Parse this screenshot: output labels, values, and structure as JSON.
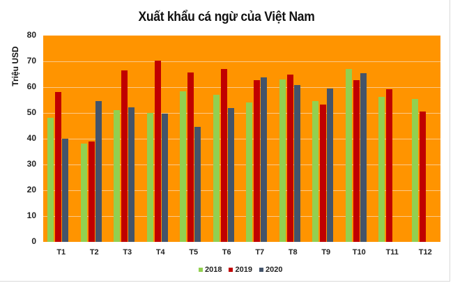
{
  "chart_data": {
    "type": "bar",
    "title": "Xuất khẩu cá ngừ của Việt Nam",
    "xlabel": "",
    "ylabel": "Triệu USD",
    "ylim": [
      0,
      80
    ],
    "yticks": [
      0,
      10,
      20,
      30,
      40,
      50,
      60,
      70,
      80
    ],
    "grid": true,
    "legend_position": "bottom",
    "background_color": "#FF9400",
    "categories": [
      "T1",
      "T2",
      "T3",
      "T4",
      "T5",
      "T6",
      "T7",
      "T8",
      "T9",
      "T10",
      "T11",
      "T12"
    ],
    "series": [
      {
        "name": "2018",
        "color": "#92D050",
        "values": [
          48,
          38,
          51,
          50,
          58.5,
          57,
          54,
          63,
          54.5,
          67,
          56.3,
          55.5
        ]
      },
      {
        "name": "2019",
        "color": "#C00000",
        "values": [
          58,
          39,
          66.5,
          70.2,
          65.8,
          67,
          62.7,
          64.9,
          53.2,
          62.7,
          59.3,
          50.5
        ]
      },
      {
        "name": "2020",
        "color": "#44546A",
        "values": [
          40,
          54.7,
          52.1,
          49.7,
          44.6,
          51.8,
          63.8,
          60.8,
          59.5,
          65.4,
          null,
          null
        ]
      }
    ]
  }
}
